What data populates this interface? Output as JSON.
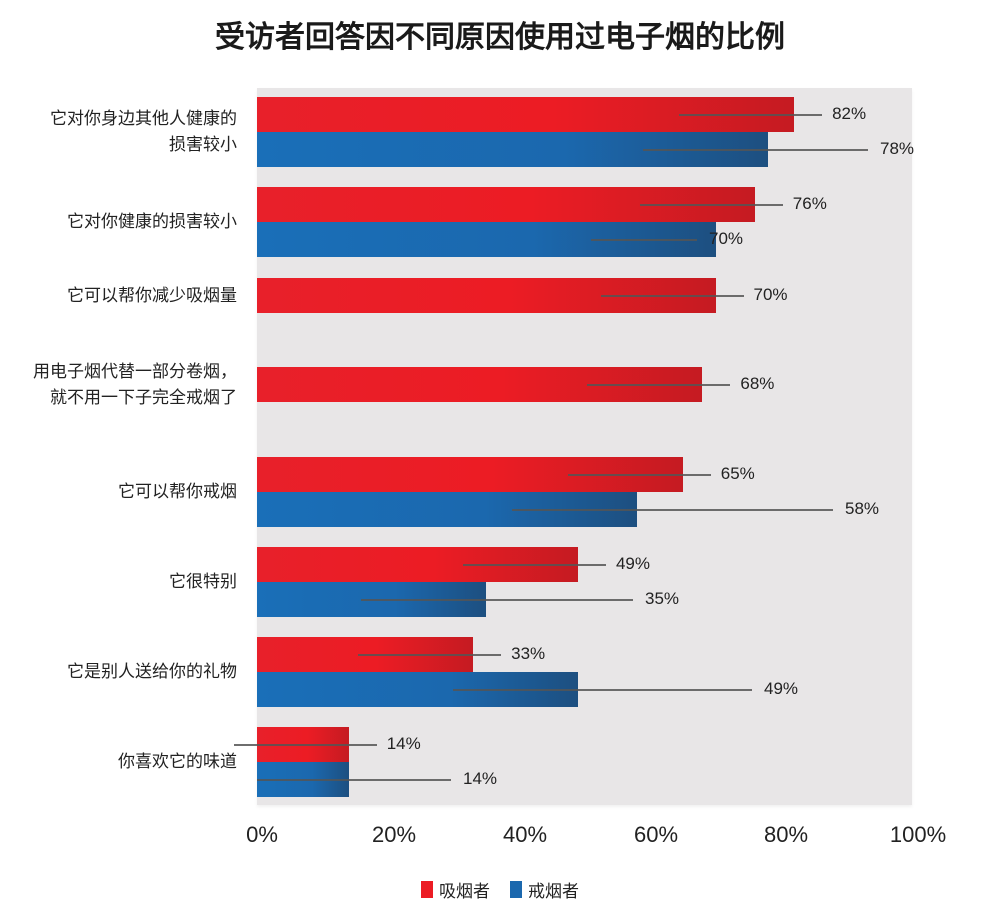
{
  "title": "受访者回答因不同原因使用过电子烟的比例",
  "colors": {
    "smoker": "#ec1c24",
    "quitter": "#1b68ae",
    "plot_bg": "#e8e6e7"
  },
  "legend": [
    {
      "label": "吸烟者",
      "color": "#ec1c24"
    },
    {
      "label": "戒烟者",
      "color": "#1b68ae"
    }
  ],
  "x_ticks": [
    "0%",
    "20%",
    "40%",
    "60%",
    "80%",
    "100%"
  ],
  "categories": [
    {
      "label_lines": [
        "它对你身边其他人健康的",
        "损害较小"
      ],
      "smoker": 82,
      "quitter": 78,
      "smoker_label": "82%",
      "quitter_label": "78%"
    },
    {
      "label_lines": [
        "它对你健康的损害较小"
      ],
      "smoker": 76,
      "quitter": 70,
      "smoker_label": "76%",
      "quitter_label": "70%"
    },
    {
      "label_lines": [
        "它可以帮你减少吸烟量"
      ],
      "smoker": 70,
      "quitter": null,
      "smoker_label": "70%",
      "quitter_label": null
    },
    {
      "label_lines": [
        "用电子烟代替一部分卷烟，",
        "就不用一下子完全戒烟了"
      ],
      "smoker": 68,
      "quitter": null,
      "smoker_label": "68%",
      "quitter_label": null
    },
    {
      "label_lines": [
        "它可以帮你戒烟"
      ],
      "smoker": 65,
      "quitter": 58,
      "smoker_label": "65%",
      "quitter_label": "58%"
    },
    {
      "label_lines": [
        "它很特别"
      ],
      "smoker": 49,
      "quitter": 35,
      "smoker_label": "49%",
      "quitter_label": "35%"
    },
    {
      "label_lines": [
        "它是别人送给你的礼物"
      ],
      "smoker": 33,
      "quitter": 49,
      "smoker_label": "33%",
      "quitter_label": "49%"
    },
    {
      "label_lines": [
        "你喜欢它的味道"
      ],
      "smoker": 14,
      "quitter": 14,
      "smoker_label": "14%",
      "quitter_label": "14%"
    }
  ],
  "chart_data": {
    "type": "bar",
    "orientation": "horizontal",
    "title": "受访者回答因不同原因使用过电子烟的比例",
    "categories": [
      "它对你身边其他人健康的损害较小",
      "它对你健康的损害较小",
      "它可以帮你减少吸烟量",
      "用电子烟代替一部分卷烟，就不用一下子完全戒烟了",
      "它可以帮你戒烟",
      "它很特别",
      "它是别人送给你的礼物",
      "你喜欢它的味道"
    ],
    "series": [
      {
        "name": "吸烟者",
        "color": "#ec1c24",
        "values": [
          82,
          76,
          70,
          68,
          65,
          49,
          33,
          14
        ]
      },
      {
        "name": "戒烟者",
        "color": "#1b68ae",
        "values": [
          78,
          70,
          null,
          null,
          58,
          35,
          49,
          14
        ]
      }
    ],
    "xlabel": "",
    "ylabel": "",
    "x_tick_labels": [
      "0%",
      "20%",
      "40%",
      "60%",
      "80%",
      "100%"
    ],
    "xlim": [
      0,
      100
    ],
    "unit": "%",
    "grid": false,
    "legend_position": "bottom",
    "data_labels": true
  }
}
